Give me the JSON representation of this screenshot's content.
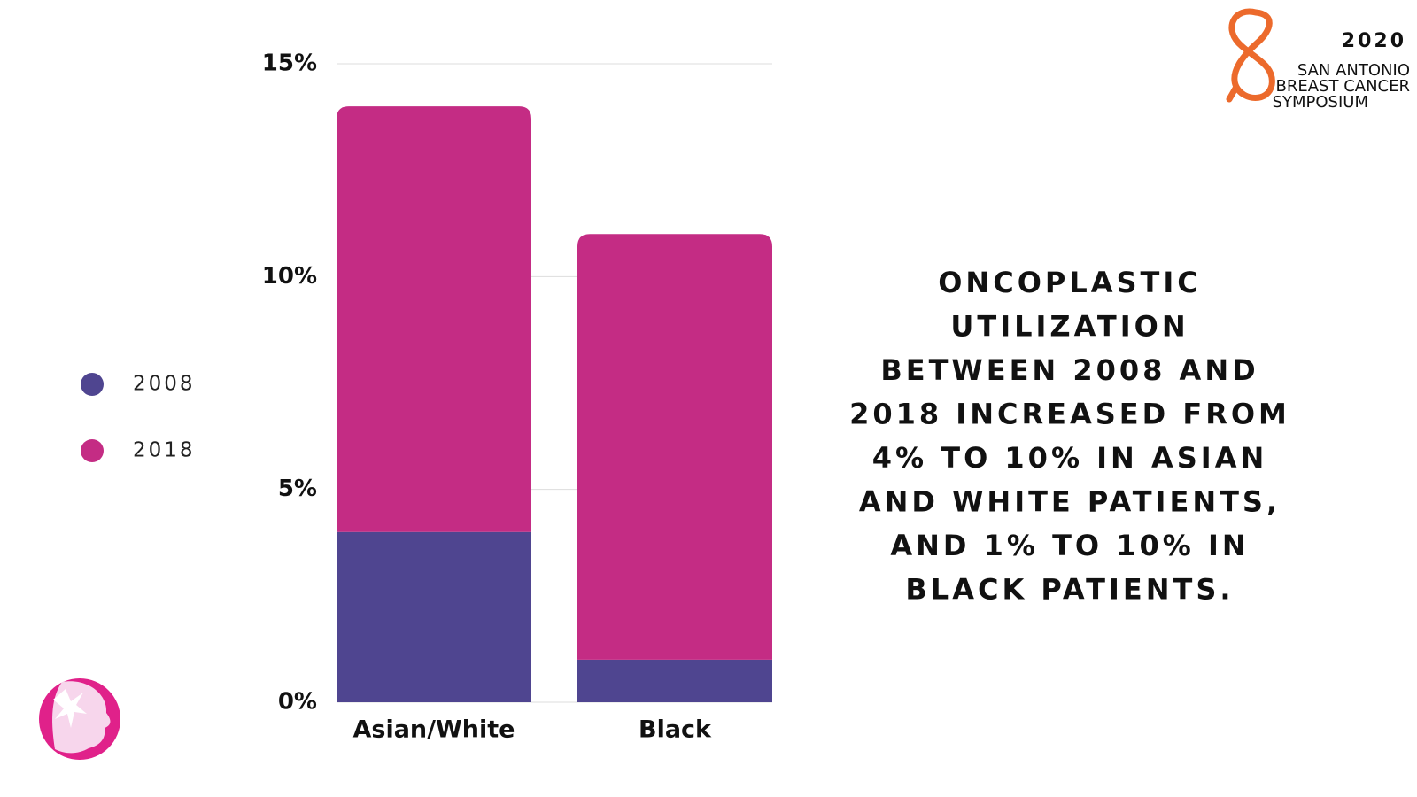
{
  "chart_data": {
    "type": "bar",
    "stacked": true,
    "categories": [
      "Asian/White",
      "Black"
    ],
    "series": [
      {
        "name": "2008",
        "color": "#4f4590",
        "values": [
          4,
          1
        ]
      },
      {
        "name": "2018",
        "color": "#c42c84",
        "values": [
          10,
          10
        ]
      }
    ],
    "ylim": [
      0,
      15
    ],
    "yticks": [
      {
        "value": 0,
        "label": "0%"
      },
      {
        "value": 5,
        "label": "5%"
      },
      {
        "value": 10,
        "label": "10%"
      },
      {
        "value": 15,
        "label": "15%"
      }
    ],
    "grid": true,
    "legend": "left",
    "annotation": [
      "ONCOPLASTIC",
      "UTILIZATION",
      "BETWEEN 2008 AND",
      "2018 INCREASED FROM",
      "4% TO 10% IN ASIAN",
      "AND WHITE PATIENTS,",
      "AND 1% TO 10% IN",
      "BLACK PATIENTS."
    ]
  },
  "logo": {
    "year": "2020",
    "lines": [
      "SAN ANTONIO",
      "BREAST CANCER",
      "SYMPOSIUM"
    ]
  }
}
